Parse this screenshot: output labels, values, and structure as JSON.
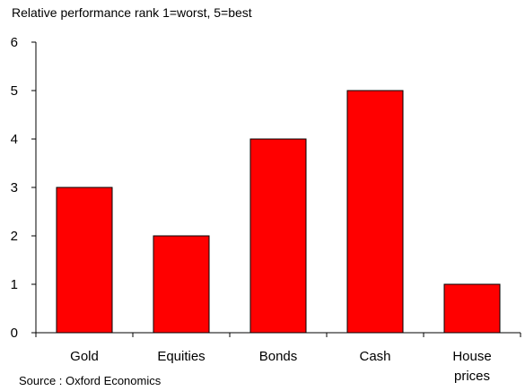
{
  "chart_data": {
    "type": "bar",
    "subtitle": "Relative performance rank 1=worst, 5=best",
    "categories": [
      "Gold",
      "Equities",
      "Bonds",
      "Cash",
      "House\nprices"
    ],
    "values": [
      3,
      2,
      4,
      5,
      1
    ],
    "ylim": [
      0,
      6
    ],
    "yticks": [
      0,
      1,
      2,
      3,
      4,
      5,
      6
    ],
    "bar_color": "#ff0000",
    "bar_outline": "#000000",
    "grid": false,
    "legend": "none",
    "source": "Source : Oxford Economics"
  }
}
